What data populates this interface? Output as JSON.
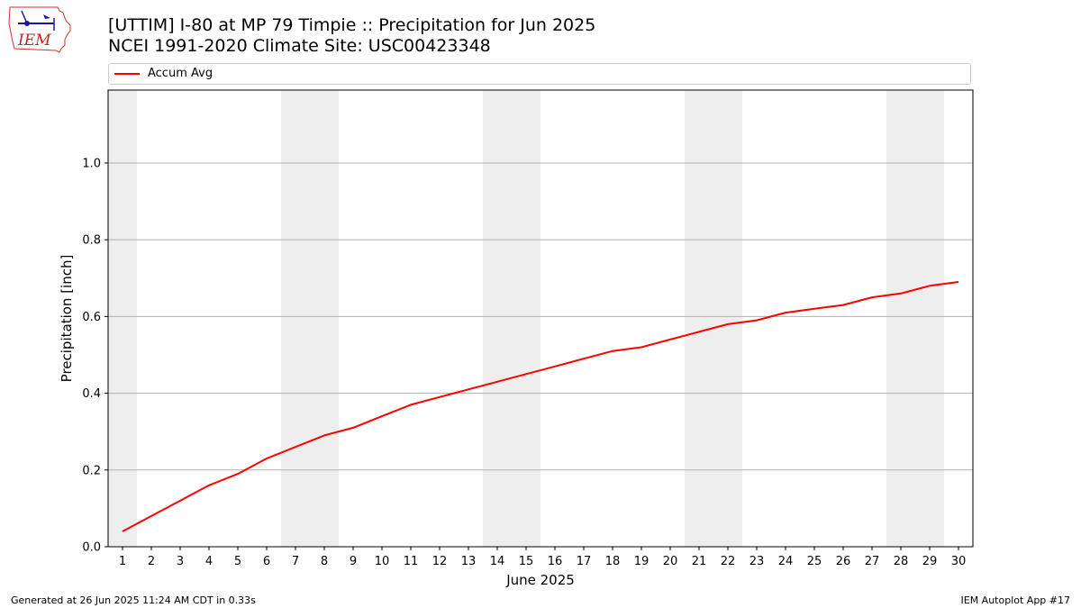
{
  "header": {
    "title_line1": "[UTTIM] I-80 at MP 79 Timpie  :: Precipitation for Jun 2025",
    "title_line2": "NCEI 1991-2020 Climate Site: USC00423348",
    "logo_text": "IEM"
  },
  "legend": {
    "label": "Accum Avg",
    "color": "#ff0000"
  },
  "footer": {
    "left": "Generated at 26 Jun 2025 11:24 AM CDT in 0.33s",
    "right": "IEM Autoplot App #17"
  },
  "chart_data": {
    "type": "line",
    "xlabel": "June 2025",
    "ylabel": "Precipitation [inch]",
    "xlim": [
      0.5,
      30.5
    ],
    "ylim": [
      0,
      1.19
    ],
    "x_ticks": [
      1,
      2,
      3,
      4,
      5,
      6,
      7,
      8,
      9,
      10,
      11,
      12,
      13,
      14,
      15,
      16,
      17,
      18,
      19,
      20,
      21,
      22,
      23,
      24,
      25,
      26,
      27,
      28,
      29,
      30
    ],
    "y_ticks": [
      0.0,
      0.2,
      0.4,
      0.6,
      0.8,
      1.0
    ],
    "y_tick_labels": [
      "0.0",
      "0.2",
      "0.4",
      "0.6",
      "0.8",
      "1.0"
    ],
    "grid": "horizontal",
    "weekend_bands": [
      [
        0.5,
        1.5
      ],
      [
        6.5,
        8.5
      ],
      [
        13.5,
        15.5
      ],
      [
        20.5,
        22.5
      ],
      [
        27.5,
        29.5
      ]
    ],
    "band_color": "#eeeeee",
    "series": [
      {
        "name": "Accum Avg",
        "color": "#ff0000",
        "x": [
          1,
          2,
          3,
          4,
          5,
          6,
          7,
          8,
          9,
          10,
          11,
          12,
          13,
          14,
          15,
          16,
          17,
          18,
          19,
          20,
          21,
          22,
          23,
          24,
          25,
          26,
          27,
          28,
          29,
          30
        ],
        "values": [
          0.04,
          0.08,
          0.12,
          0.16,
          0.19,
          0.23,
          0.26,
          0.29,
          0.31,
          0.34,
          0.37,
          0.39,
          0.41,
          0.43,
          0.45,
          0.47,
          0.49,
          0.51,
          0.52,
          0.54,
          0.56,
          0.58,
          0.59,
          0.61,
          0.62,
          0.63,
          0.65,
          0.66,
          0.68,
          0.69
        ]
      }
    ]
  }
}
